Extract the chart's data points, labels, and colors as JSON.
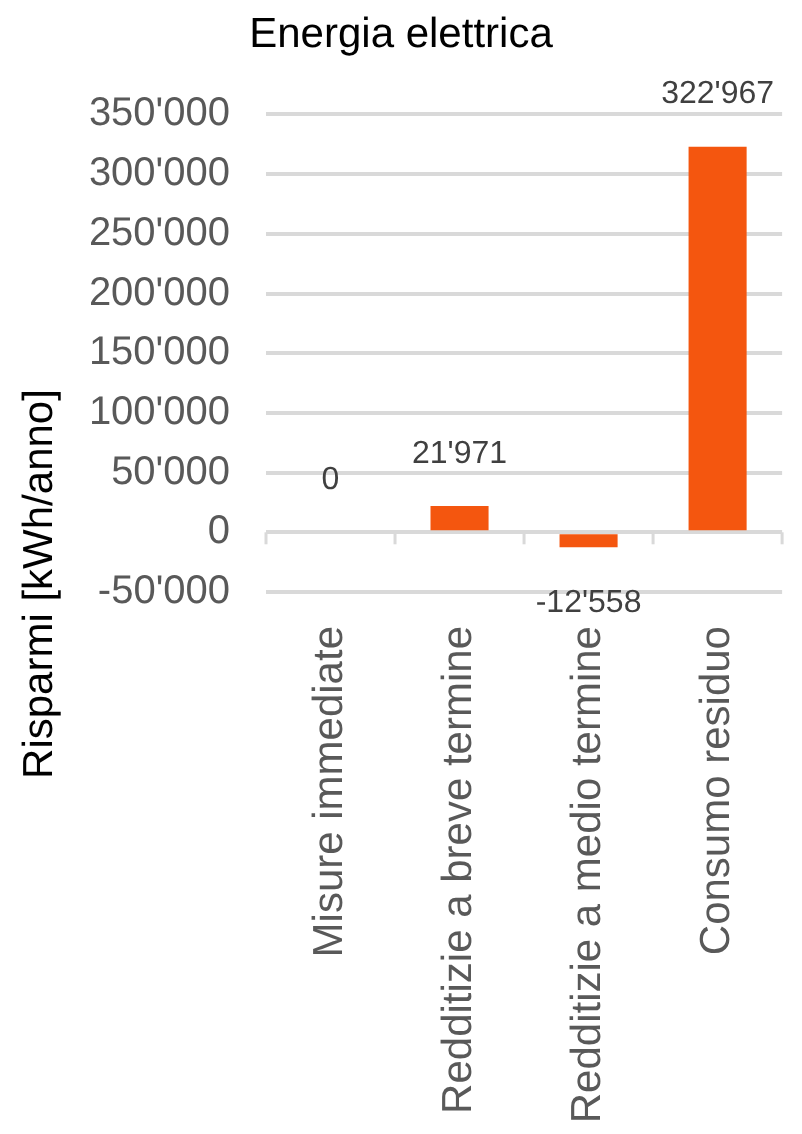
{
  "chart_data": {
    "type": "bar",
    "title": "Energia elettrica",
    "ylabel": "Risparmi [kWh/anno]",
    "categories": [
      "Misure immediate",
      "Redditizie a breve termine",
      "Redditizie a medio termine",
      "Consumo residuo"
    ],
    "values": [
      0,
      21971,
      -12558,
      322967
    ],
    "value_labels": [
      "0",
      "21'971",
      "-12'558",
      "322'967"
    ],
    "color": "#f4560f",
    "ylim": [
      -50000,
      350000
    ],
    "yticks": [
      {
        "value": -50000,
        "label": "-50'000"
      },
      0,
      {
        "value": 50000,
        "label": "50'000"
      },
      {
        "value": 100000,
        "label": "100'000"
      },
      {
        "value": 150000,
        "label": "150'000"
      },
      {
        "value": 200000,
        "label": "200'000"
      },
      {
        "value": 250000,
        "label": "250'000"
      },
      {
        "value": 300000,
        "label": "300'000"
      },
      {
        "value": 350000,
        "label": "350'000"
      }
    ],
    "grid": "y"
  }
}
